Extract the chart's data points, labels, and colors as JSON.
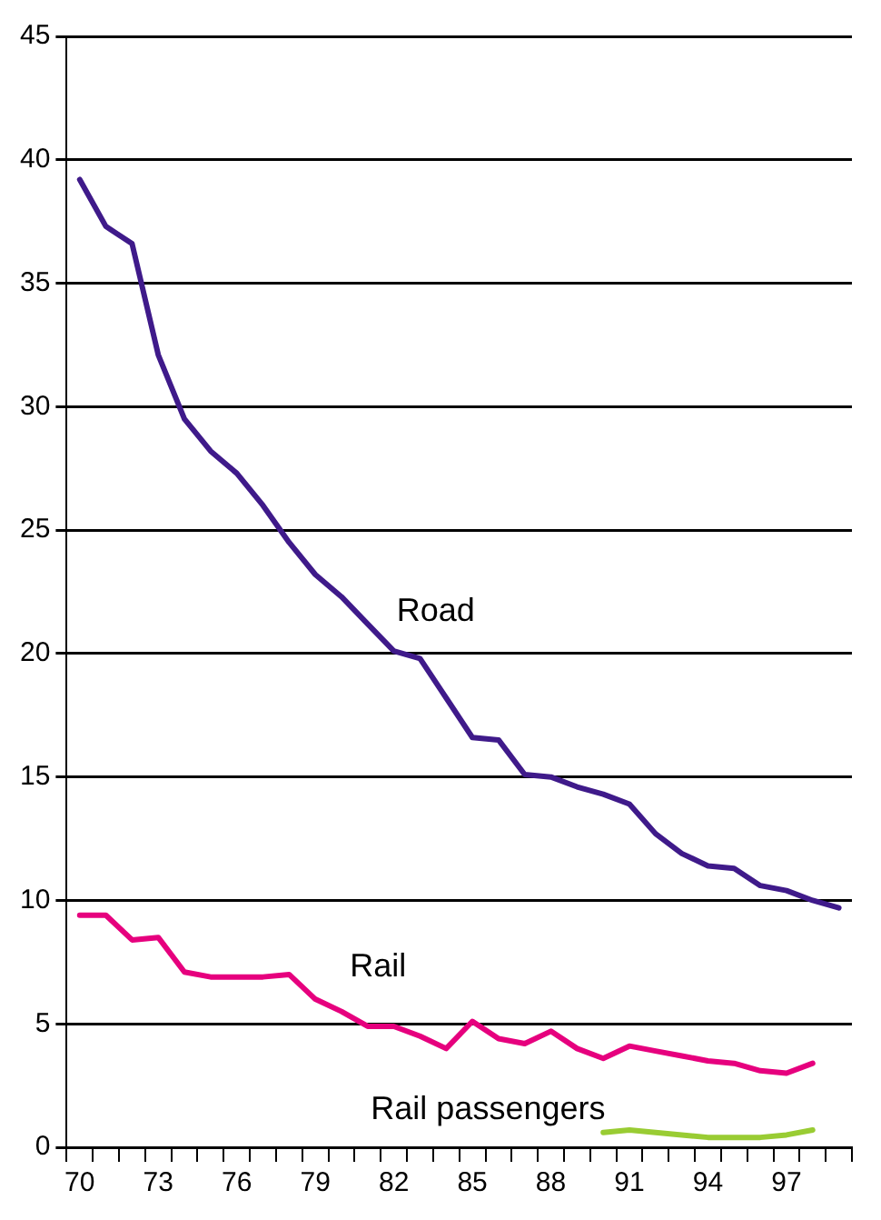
{
  "chart_data": {
    "type": "line",
    "categories": [
      "70",
      null,
      null,
      "73",
      null,
      null,
      "76",
      null,
      null,
      "79",
      null,
      null,
      "82",
      null,
      null,
      "85",
      null,
      null,
      "88",
      null,
      null,
      "91",
      null,
      null,
      "94",
      null,
      null,
      "97",
      null,
      null
    ],
    "series": [
      {
        "name": "Road",
        "color": "#3f1a8a",
        "values": [
          39.2,
          37.3,
          36.6,
          32.1,
          29.5,
          28.2,
          27.3,
          26.0,
          24.5,
          23.2,
          22.3,
          21.2,
          20.1,
          19.8,
          18.2,
          16.6,
          16.5,
          15.1,
          15.0,
          14.6,
          14.3,
          13.9,
          12.7,
          11.9,
          11.4,
          11.3,
          10.6,
          10.4,
          10.0,
          9.7
        ]
      },
      {
        "name": "Rail",
        "color": "#e6007e",
        "values": [
          9.4,
          9.4,
          8.4,
          8.5,
          7.1,
          6.9,
          6.9,
          6.9,
          7.0,
          6.0,
          5.5,
          4.9,
          4.9,
          4.5,
          4.0,
          5.1,
          4.4,
          4.2,
          4.7,
          4.0,
          3.6,
          4.1,
          3.9,
          3.7,
          3.5,
          3.4,
          3.1,
          3.0,
          3.4,
          null
        ]
      },
      {
        "name": "Rail passengers",
        "color": "#99cc33",
        "values": [
          null,
          null,
          null,
          null,
          null,
          null,
          null,
          null,
          null,
          null,
          null,
          null,
          null,
          null,
          null,
          null,
          null,
          null,
          null,
          null,
          0.6,
          0.7,
          0.6,
          0.5,
          0.4,
          0.4,
          0.4,
          0.5,
          0.7,
          null
        ]
      }
    ],
    "ylim": [
      0,
      45
    ],
    "yticks": [
      0,
      5,
      10,
      15,
      20,
      25,
      30,
      35,
      40,
      45
    ],
    "grid": "y",
    "legend": false,
    "marker": "none",
    "line_style": "solid"
  }
}
